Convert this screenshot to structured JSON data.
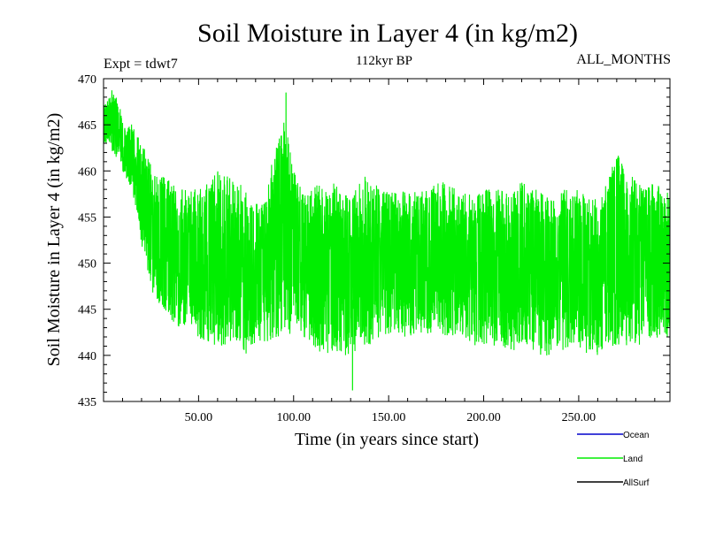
{
  "chart_data": {
    "type": "line",
    "title": "Soil Moisture in Layer 4 (in kg/m2)",
    "subtitle": "112kyr BP",
    "experiment_label": "Expt = tdwt7",
    "period_label": "ALL_MONTHS",
    "xlabel": "Time (in years since start)",
    "ylabel": "Soil Moisture in Layer 4 (in kg/m2)",
    "xlim": [
      0,
      298
    ],
    "ylim": [
      435,
      470
    ],
    "x_ticks": [
      50,
      100,
      150,
      200,
      250
    ],
    "x_tick_labels": [
      "50.00",
      "100.00",
      "150.00",
      "200.00",
      "250.00"
    ],
    "y_ticks": [
      435,
      440,
      445,
      450,
      455,
      460,
      465,
      470
    ],
    "y_tick_labels": [
      "435",
      "440",
      "445",
      "450",
      "455",
      "460",
      "465",
      "470"
    ],
    "grid": false,
    "legend_position": "bottom-right",
    "legend": [
      {
        "name": "Ocean",
        "color": "#0000cc"
      },
      {
        "name": "Land",
        "color": "#00ee00"
      },
      {
        "name": "AllSurf",
        "color": "#000000"
      }
    ],
    "series": [
      {
        "name": "Land",
        "color": "#00ee00",
        "x": [
          0,
          5,
          10,
          15,
          20,
          25,
          30,
          35,
          40,
          45,
          50,
          55,
          60,
          65,
          70,
          75,
          80,
          85,
          90,
          95,
          100,
          105,
          110,
          115,
          120,
          125,
          130,
          135,
          140,
          145,
          150,
          155,
          160,
          165,
          170,
          175,
          180,
          185,
          190,
          195,
          200,
          205,
          210,
          215,
          220,
          225,
          230,
          235,
          240,
          245,
          250,
          255,
          260,
          265,
          270,
          275,
          280,
          285,
          290,
          295,
          298
        ],
        "upper": [
          467,
          469,
          466,
          465,
          463,
          461,
          460,
          459,
          458,
          458,
          458,
          459,
          460,
          460,
          459,
          458,
          457,
          458,
          462,
          466,
          460,
          458,
          458,
          459,
          459,
          458,
          457,
          459,
          460,
          458,
          458,
          458,
          458,
          458,
          458,
          459,
          459,
          458,
          458,
          457,
          458,
          458,
          458,
          458,
          459,
          458,
          458,
          457,
          458,
          458,
          458,
          457,
          457,
          459,
          462,
          460,
          459,
          458,
          459,
          458,
          458
        ],
        "lower": [
          463,
          462,
          460,
          458,
          452,
          447,
          445,
          444,
          443,
          443,
          442,
          441,
          441,
          441,
          441,
          440,
          441,
          441,
          442,
          442,
          442,
          442,
          441,
          440,
          440,
          440,
          440,
          441,
          441,
          442,
          442,
          442,
          442,
          442,
          442,
          443,
          442,
          442,
          442,
          441,
          441,
          441,
          441,
          440,
          441,
          440,
          440,
          440,
          440,
          441,
          441,
          440,
          440,
          441,
          441,
          441,
          441,
          441,
          442,
          441,
          442
        ],
        "mean": [
          465,
          466,
          463,
          462,
          457,
          453,
          452,
          451,
          451,
          451,
          451,
          450,
          451,
          451,
          450,
          450,
          450,
          450,
          452,
          453,
          452,
          451,
          450,
          450,
          450,
          450,
          449,
          450,
          450,
          450,
          450,
          450,
          450,
          450,
          450,
          451,
          451,
          450,
          450,
          450,
          450,
          450,
          450,
          450,
          451,
          450,
          450,
          449,
          450,
          450,
          450,
          449,
          449,
          450,
          451,
          450,
          450,
          450,
          451,
          450,
          450
        ],
        "max": 468.5,
        "min": 436.2
      },
      {
        "name": "Ocean",
        "color": "#0000cc",
        "values": []
      },
      {
        "name": "AllSurf",
        "color": "#000000",
        "values": []
      }
    ]
  }
}
